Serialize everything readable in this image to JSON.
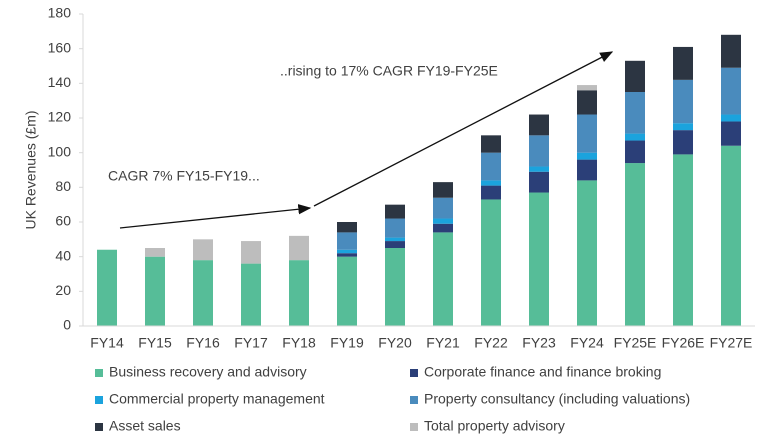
{
  "chart_data": {
    "type": "stacked_bar",
    "y_label": "UK Revenues (£m)",
    "categories": [
      "FY14",
      "FY15",
      "FY16",
      "FY17",
      "FY18",
      "FY19",
      "FY20",
      "FY21",
      "FY22",
      "FY23",
      "FY24",
      "FY25E",
      "FY26E",
      "FY27E"
    ],
    "series": [
      {
        "name": "Business recovery and advisory",
        "color": "#56bd98",
        "values": [
          44,
          40,
          38,
          36,
          38,
          40,
          45,
          54,
          73,
          77,
          84,
          94,
          99,
          104
        ]
      },
      {
        "name": "Corporate finance and finance broking",
        "color": "#2b3f78",
        "values": [
          0,
          0,
          0,
          0,
          0,
          2,
          4,
          5,
          8,
          12,
          12,
          13,
          14,
          14
        ]
      },
      {
        "name": "Commercial property management",
        "color": "#1ba3dd",
        "values": [
          0,
          0,
          0,
          0,
          0,
          2,
          2,
          3,
          3,
          3,
          4,
          4,
          4,
          4
        ]
      },
      {
        "name": "Property consultancy (including valuations)",
        "color": "#4a8bbd",
        "values": [
          0,
          0,
          0,
          0,
          0,
          10,
          11,
          12,
          16,
          18,
          22,
          24,
          25,
          27
        ]
      },
      {
        "name": "Asset sales",
        "color": "#2c3542",
        "values": [
          0,
          0,
          0,
          0,
          0,
          6,
          8,
          9,
          10,
          12,
          14,
          18,
          19,
          19
        ]
      },
      {
        "name": "Total property advisory",
        "color": "#bdbdbd",
        "values": [
          0,
          5,
          12,
          13,
          14,
          0,
          0,
          0,
          0,
          0,
          3,
          0,
          0,
          0
        ]
      }
    ],
    "ylim": [
      0,
      180
    ],
    "yticks": [
      0,
      20,
      40,
      60,
      80,
      100,
      120,
      140,
      160,
      180
    ],
    "annotations": [
      "CAGR 7% FY15-FY19...",
      "..rising to 17% CAGR FY19-FY25E"
    ]
  }
}
